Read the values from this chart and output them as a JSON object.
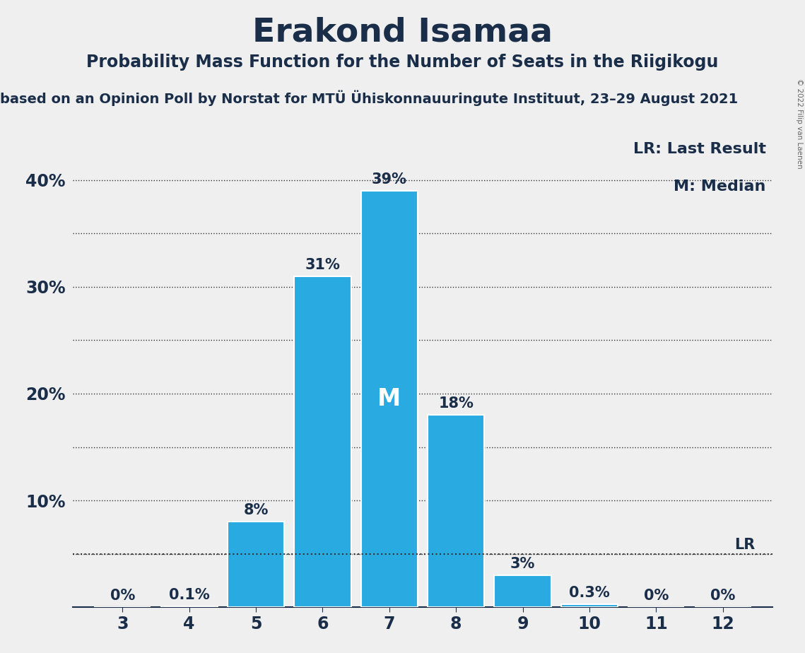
{
  "title": "Erakond Isamaa",
  "subtitle": "Probability Mass Function for the Number of Seats in the Riigikogu",
  "source_line": "based on an Opinion Poll by Norstat for MTÜ Ühiskonnauuringute Instituut, 23–29 August 2021",
  "copyright": "© 2022 Filip van Laenen",
  "seats": [
    3,
    4,
    5,
    6,
    7,
    8,
    9,
    10,
    11,
    12
  ],
  "probabilities": [
    0.0,
    0.1,
    8.0,
    31.0,
    39.0,
    18.0,
    3.0,
    0.3,
    0.0,
    0.0
  ],
  "prob_labels": [
    "0%",
    "0.1%",
    "8%",
    "31%",
    "39%",
    "18%",
    "3%",
    "0.3%",
    "0%",
    "0%"
  ],
  "bar_color": "#29ABE2",
  "bar_edge_color": "#ffffff",
  "median_seat": 7,
  "lr_value": 5.0,
  "legend_lr": "LR: Last Result",
  "legend_m": "M: Median",
  "background_color": "#EFEFEF",
  "title_fontsize": 34,
  "subtitle_fontsize": 17,
  "source_fontsize": 14,
  "yticks": [
    0,
    5,
    10,
    15,
    20,
    25,
    30,
    35,
    40
  ],
  "ylim": [
    0,
    44
  ],
  "bar_label_fontsize": 15,
  "median_label_color": "#ffffff",
  "median_label_fontsize": 24,
  "grid_color": "#333333",
  "grid_linewidth": 1.0,
  "lr_line_color": "#333333",
  "axis_color": "#1a2e4a",
  "label_color": "#1a2e4a",
  "tick_fontsize": 17,
  "legend_fontsize": 16
}
